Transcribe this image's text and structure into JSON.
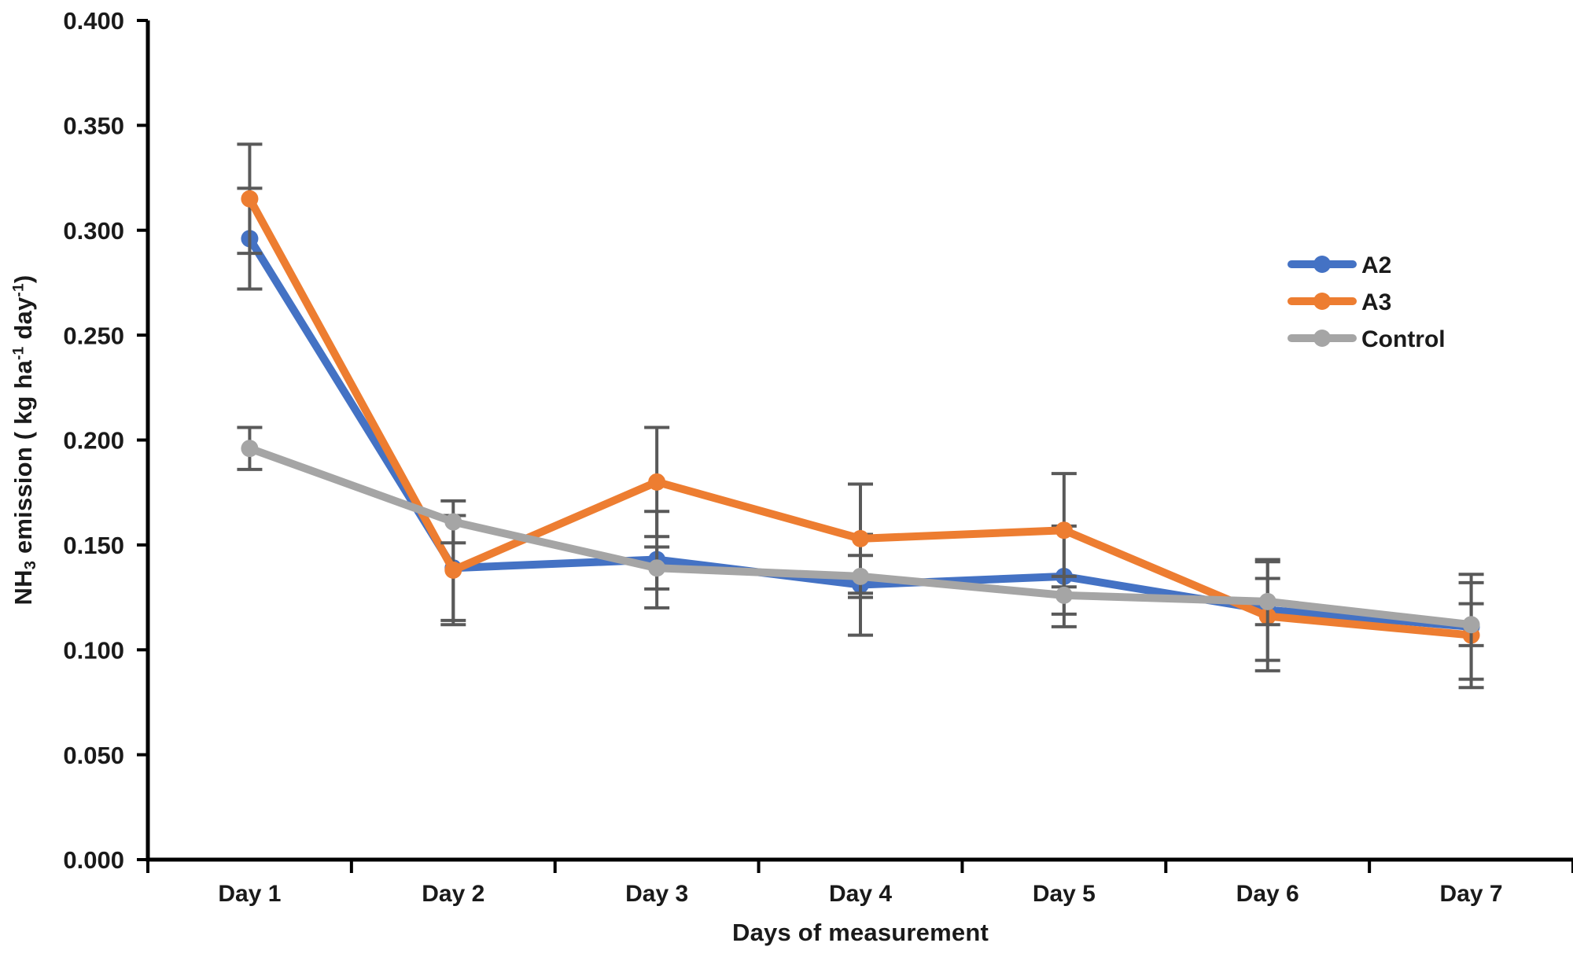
{
  "figure": {
    "background": "#ffffff",
    "text_color": "#1a1a1a",
    "axis_color": "#000000",
    "error_bar_color": "#595959"
  },
  "chart_data": {
    "type": "line",
    "categories": [
      "Day 1",
      "Day 2",
      "Day 3",
      "Day 4",
      "Day 5",
      "Day 6",
      "Day 7"
    ],
    "series": [
      {
        "name": "A2",
        "color": "#4472C4",
        "values": [
          0.296,
          0.139,
          0.143,
          0.131,
          0.135,
          0.119,
          0.111
        ],
        "error": [
          0.024,
          0.025,
          0.023,
          0.024,
          0.024,
          0.024,
          0.025
        ]
      },
      {
        "name": "A3",
        "color": "#ED7D31",
        "values": [
          0.315,
          0.138,
          0.18,
          0.153,
          0.157,
          0.116,
          0.107
        ],
        "error": [
          0.026,
          0.026,
          0.026,
          0.026,
          0.027,
          0.026,
          0.025
        ]
      },
      {
        "name": "Control",
        "color": "#A5A5A5",
        "values": [
          0.196,
          0.161,
          0.139,
          0.135,
          0.126,
          0.123,
          0.112
        ],
        "error": [
          0.01,
          0.01,
          0.01,
          0.01,
          0.009,
          0.011,
          0.01
        ]
      }
    ],
    "title": "",
    "xlabel": "Days of measurement",
    "ylabel": "NH3 emission ( kg ha-1 day-1)",
    "ylabel_parts": [
      {
        "t": "NH"
      },
      {
        "t": "3",
        "s": "sub"
      },
      {
        "t": " emission ( kg ha"
      },
      {
        "t": "-1",
        "s": "sup"
      },
      {
        "t": " day"
      },
      {
        "t": "-1",
        "s": "sup"
      },
      {
        "t": ")"
      }
    ],
    "ylim": [
      0,
      0.4
    ],
    "ytick_step": 0.05,
    "ytick_decimals": 3,
    "ytick_labels": [
      "0.000",
      "0.050",
      "0.100",
      "0.150",
      "0.200",
      "0.250",
      "0.300",
      "0.350",
      "0.400"
    ],
    "grid": "off",
    "legend_position": "middle-right",
    "legend_entries": [
      "A2",
      "A3",
      "Control"
    ],
    "marker": "circle",
    "error_bars": true
  }
}
